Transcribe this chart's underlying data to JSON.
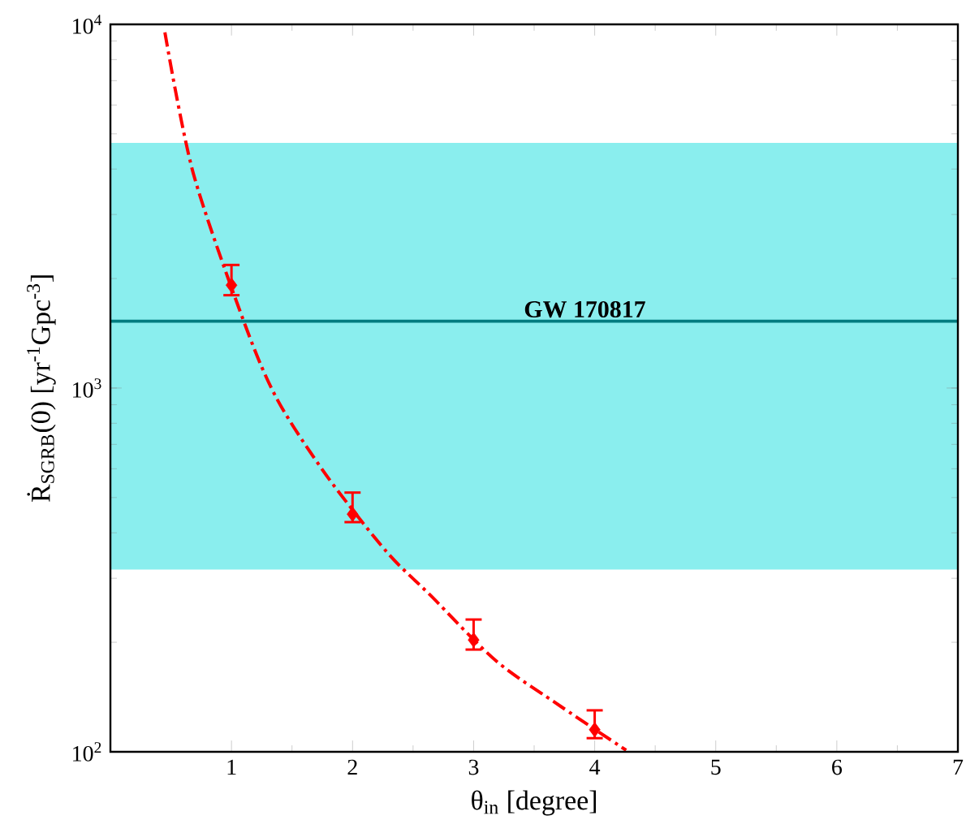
{
  "chart_data": {
    "type": "scatter",
    "xlabel": "θ$_{in}$ [degree]",
    "ylabel": "Ṙ$_{SGRB}$(0) [yr$^{-1}$Gpc$^{-3}$]",
    "xlim": [
      0,
      7
    ],
    "xticks": [
      1,
      2,
      3,
      4,
      5,
      6,
      7
    ],
    "ylim": [
      100,
      10000
    ],
    "yticks": [
      {
        "value": 100,
        "label": "10$^{2}$"
      },
      {
        "value": 1000,
        "label": "10$^{3}$"
      },
      {
        "value": 10000,
        "label": "10$^{4}$"
      }
    ],
    "log": "y",
    "grid": false,
    "bands": [
      {
        "axis": "y",
        "from": 317,
        "to": 4720,
        "color": "#8aeeee"
      }
    ],
    "ref_lines": [
      {
        "axis": "y",
        "value": 1527,
        "label": "GW 170817",
        "color": "#007c80",
        "line_style": "solid"
      }
    ],
    "series": [
      {
        "type": "line",
        "color": "#ff0000",
        "line_style": "dashdot",
        "marker": "none",
        "x": [
          0.45,
          0.684,
          1.112,
          1.382,
          1.788,
          2.284,
          2.645,
          3.184,
          3.724,
          4.26
        ],
        "values": [
          9500,
          3900,
          1493,
          925,
          573,
          354,
          269,
          178,
          133,
          101
        ]
      },
      {
        "color": "#ff0000",
        "marker": "diamond",
        "x": [
          1,
          2,
          3,
          4
        ],
        "values": [
          1918,
          450,
          203,
          115
        ],
        "errors": [
          [
            1800,
            2180
          ],
          [
            428,
            516
          ],
          [
            191,
            231
          ],
          [
            109,
            130
          ]
        ]
      }
    ]
  }
}
